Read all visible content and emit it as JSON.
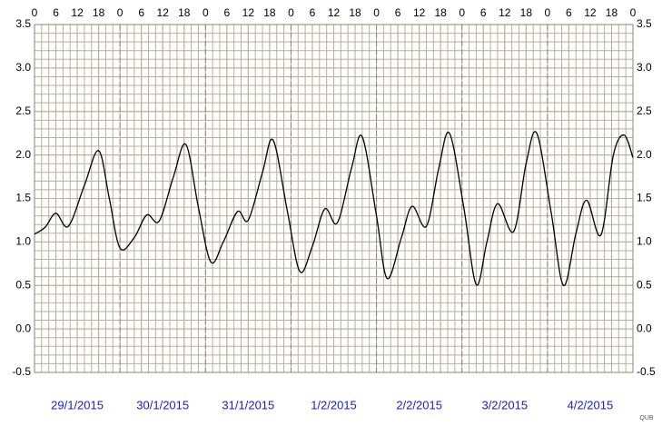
{
  "chart_data": {
    "type": "line",
    "x": [
      0,
      3,
      6,
      9.5,
      14,
      18,
      21,
      24,
      28,
      31.5,
      35,
      39,
      42.5,
      46,
      49.5,
      53,
      57,
      60,
      64,
      67,
      71,
      74.5,
      78,
      81.5,
      85,
      89,
      92,
      96,
      99,
      103,
      106,
      110,
      113.5,
      116.5,
      120.5,
      124,
      127,
      130,
      134.5,
      138,
      141,
      145,
      148.5,
      152,
      155,
      159,
      162.5,
      165.5,
      168
    ],
    "values": [
      1.09,
      1.17,
      1.33,
      1.18,
      1.65,
      2.05,
      1.5,
      0.93,
      1.05,
      1.31,
      1.24,
      1.75,
      2.12,
      1.4,
      0.77,
      1.0,
      1.35,
      1.25,
      1.8,
      2.17,
      1.35,
      0.66,
      0.95,
      1.38,
      1.22,
      1.85,
      2.21,
      1.3,
      0.58,
      1.05,
      1.41,
      1.18,
      1.85,
      2.25,
      1.4,
      0.51,
      1.0,
      1.44,
      1.12,
      1.9,
      2.25,
      1.35,
      0.5,
      1.1,
      1.48,
      1.08,
      2.0,
      2.23,
      1.97
    ],
    "color": "#000000",
    "xlim": [
      0,
      168
    ],
    "xticks": [
      0,
      6,
      12,
      18,
      {
        "value": 24,
        "label": "0"
      },
      {
        "value": 30,
        "label": "6"
      },
      {
        "value": 36,
        "label": "12"
      },
      {
        "value": 42,
        "label": "18"
      },
      {
        "value": 48,
        "label": "0"
      },
      {
        "value": 54,
        "label": "6"
      },
      {
        "value": 60,
        "label": "12"
      },
      {
        "value": 66,
        "label": "18"
      },
      {
        "value": 72,
        "label": "0"
      },
      {
        "value": 78,
        "label": "6"
      },
      {
        "value": 84,
        "label": "12"
      },
      {
        "value": 90,
        "label": "18"
      },
      {
        "value": 96,
        "label": "0"
      },
      {
        "value": 102,
        "label": "6"
      },
      {
        "value": 108,
        "label": "12"
      },
      {
        "value": 114,
        "label": "18"
      },
      {
        "value": 120,
        "label": "0"
      },
      {
        "value": 126,
        "label": "6"
      },
      {
        "value": 132,
        "label": "12"
      },
      {
        "value": 138,
        "label": "18"
      },
      {
        "value": 144,
        "label": "0"
      },
      {
        "value": 150,
        "label": "6"
      },
      {
        "value": 156,
        "label": "12"
      },
      {
        "value": 162,
        "label": "18"
      },
      {
        "value": 168,
        "label": "0"
      }
    ],
    "ylim": [
      -0.5,
      3.5
    ],
    "yticks": [
      -0.5,
      {
        "value": 0,
        "label": "0.0"
      },
      0.5,
      {
        "value": 1,
        "label": "1.0"
      },
      1.5,
      {
        "value": 2,
        "label": "2.0"
      },
      2.5,
      {
        "value": 3,
        "label": "3.0"
      },
      3.5
    ],
    "grid": true,
    "grid_x_step": 2,
    "grid_y_step": 0.1,
    "date_labels": [
      "29/1/2015",
      "30/1/2015",
      "31/1/2015",
      "1/2/2015",
      "2/2/2015",
      "3/2/2015",
      "4/2/2015"
    ],
    "date_color": "#1a1ad8",
    "credit": "QUB"
  }
}
